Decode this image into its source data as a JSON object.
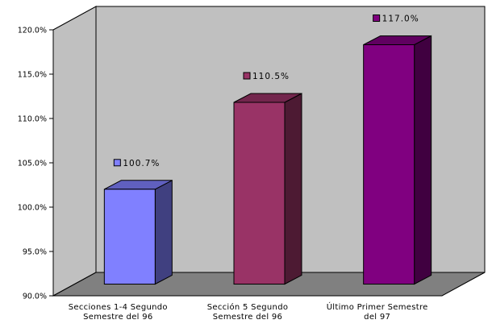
{
  "chart_data": {
    "type": "bar",
    "title": "",
    "xlabel": "",
    "ylabel": "",
    "ylim": [
      90,
      120
    ],
    "yticks": [
      "90.0%",
      "95.0%",
      "100.0%",
      "105.0%",
      "110.0%",
      "115.0%",
      "120.0%"
    ],
    "categories": [
      [
        "Secciones 1-4 Segundo",
        "Semestre del 96"
      ],
      [
        "Sección 5 Segundo",
        "Semestre del 96"
      ],
      [
        "Último Primer Semestre",
        "del 97"
      ]
    ],
    "values": [
      100.7,
      110.5,
      117.0
    ],
    "value_labels": [
      "100.7%",
      "110.5%",
      "117.0%"
    ],
    "colors": [
      "#8080FF",
      "#993366",
      "#800080"
    ],
    "wall_color": "#C0C0C0",
    "floor_color": "#808080",
    "grid": false,
    "legend": "none"
  }
}
